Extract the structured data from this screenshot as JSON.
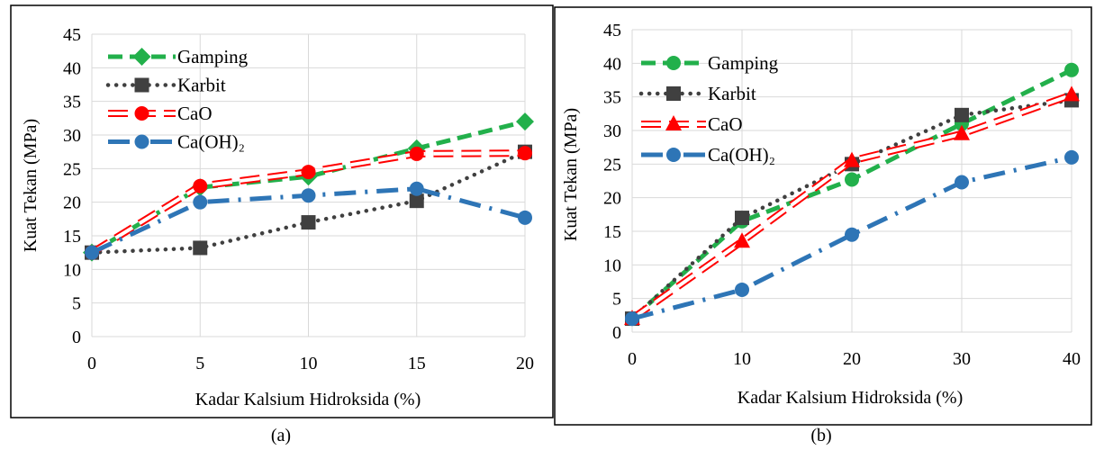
{
  "chart_data": [
    {
      "type": "line",
      "caption": "(a)",
      "xlabel": "Kadar Kalsium Hidroksida (%)",
      "ylabel": "Kuat Tekan (MPa)",
      "xlim": [
        0,
        20
      ],
      "ylim": [
        0,
        45
      ],
      "xticks": [
        "0",
        "5",
        "10",
        "15",
        "20"
      ],
      "yticks": [
        "0",
        "5",
        "10",
        "15",
        "20",
        "25",
        "30",
        "35",
        "40",
        "45"
      ],
      "grid": true,
      "legend_position": "top-left",
      "x": [
        0,
        5,
        10,
        15,
        20
      ],
      "series": [
        {
          "name": "Gamping",
          "values": [
            12.5,
            22.2,
            23.8,
            28.0,
            32.0
          ],
          "color": "#22b04b",
          "marker": "diamond",
          "line": "dash"
        },
        {
          "name": "Karbit",
          "values": [
            12.5,
            13.2,
            17.0,
            20.2,
            27.5
          ],
          "color": "#404040",
          "marker": "square",
          "line": "dot"
        },
        {
          "name": "CaO",
          "values": [
            12.5,
            22.4,
            24.5,
            27.2,
            27.3
          ],
          "color": "#ff0000",
          "marker": "circle",
          "line": "hollow-dash"
        },
        {
          "name": "Ca(OH)₂",
          "values": [
            12.5,
            20.0,
            21.0,
            22.0,
            17.7
          ],
          "color": "#2e75b6",
          "marker": "circle",
          "line": "dash-dot"
        }
      ]
    },
    {
      "type": "line",
      "caption": "(b)",
      "xlabel": "Kadar Kalsium Hidroksida (%)",
      "ylabel": "Kuat Tekan (MPa)",
      "xlim": [
        0,
        40
      ],
      "ylim": [
        0,
        45
      ],
      "xticks": [
        "0",
        "10",
        "20",
        "30",
        "40"
      ],
      "yticks": [
        "0",
        "5",
        "10",
        "15",
        "20",
        "25",
        "30",
        "35",
        "40",
        "45"
      ],
      "grid": true,
      "legend_position": "top-left",
      "x": [
        0,
        10,
        20,
        30,
        40
      ],
      "series": [
        {
          "name": "Gamping",
          "values": [
            2.0,
            16.5,
            22.7,
            31.0,
            39.0
          ],
          "color": "#22b04b",
          "marker": "circle",
          "line": "dash"
        },
        {
          "name": "Karbit",
          "values": [
            2.0,
            17.0,
            25.0,
            32.3,
            34.5
          ],
          "color": "#404040",
          "marker": "square",
          "line": "dot"
        },
        {
          "name": "CaO",
          "values": [
            2.0,
            13.5,
            25.5,
            29.5,
            35.3
          ],
          "color": "#ff0000",
          "marker": "triangle",
          "line": "hollow-dash"
        },
        {
          "name": "Ca(OH)₂",
          "values": [
            2.0,
            6.3,
            14.5,
            22.3,
            26.0
          ],
          "color": "#2e75b6",
          "marker": "circle",
          "line": "dash-dot"
        }
      ]
    }
  ]
}
